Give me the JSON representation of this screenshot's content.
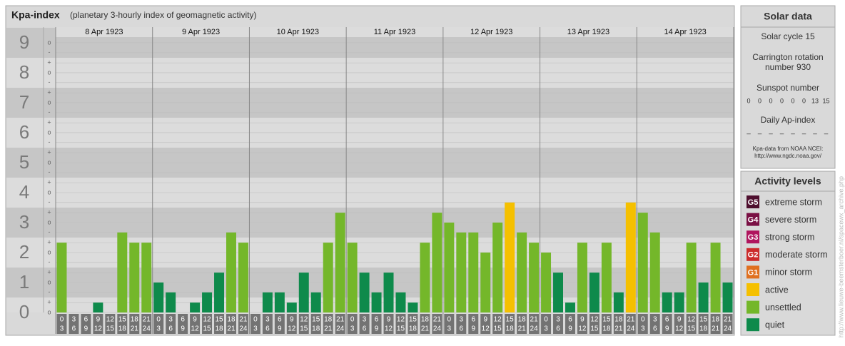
{
  "header": {
    "title": "Kpa-index",
    "subtitle": "(planetary 3-hourly index of geomagnetic activity)"
  },
  "chart_data": {
    "type": "bar",
    "days": [
      "8 Apr 1923",
      "9 Apr 1923",
      "10 Apr 1923",
      "11 Apr 1923",
      "12 Apr 1923",
      "13 Apr 1923",
      "14 Apr 1923"
    ],
    "time_bins": [
      0,
      3,
      6,
      9,
      12,
      15,
      18,
      21,
      24
    ],
    "values": [
      2.33,
      0,
      0,
      0.33,
      0,
      2.67,
      2.33,
      2.33,
      1,
      0.67,
      0,
      0.33,
      0.67,
      1.33,
      2.67,
      2.33,
      0,
      0.67,
      0.67,
      0.33,
      1.33,
      0.67,
      2.33,
      3.33,
      2.33,
      1.33,
      0.67,
      1.33,
      0.67,
      0.33,
      2.33,
      3.33,
      3,
      2.67,
      2.67,
      2,
      3,
      3.67,
      2.67,
      2.33,
      2,
      1.33,
      0.33,
      2.33,
      1.33,
      2.33,
      0.67,
      3.67,
      3.33,
      2.67,
      0.67,
      0.67,
      2.33,
      1,
      2.33,
      1
    ],
    "colors": [
      "#74b72a",
      "#0e8a4b",
      "#0e8a4b",
      "#0e8a4b",
      "#0e8a4b",
      "#74b72a",
      "#74b72a",
      "#74b72a",
      "#0e8a4b",
      "#0e8a4b",
      "#0e8a4b",
      "#0e8a4b",
      "#0e8a4b",
      "#0e8a4b",
      "#74b72a",
      "#74b72a",
      "#0e8a4b",
      "#0e8a4b",
      "#0e8a4b",
      "#0e8a4b",
      "#0e8a4b",
      "#0e8a4b",
      "#74b72a",
      "#74b72a",
      "#74b72a",
      "#0e8a4b",
      "#0e8a4b",
      "#0e8a4b",
      "#0e8a4b",
      "#0e8a4b",
      "#74b72a",
      "#74b72a",
      "#74b72a",
      "#74b72a",
      "#74b72a",
      "#74b72a",
      "#74b72a",
      "#f5c000",
      "#74b72a",
      "#74b72a",
      "#74b72a",
      "#0e8a4b",
      "#0e8a4b",
      "#74b72a",
      "#0e8a4b",
      "#74b72a",
      "#0e8a4b",
      "#f5c000",
      "#74b72a",
      "#74b72a",
      "#0e8a4b",
      "#0e8a4b",
      "#74b72a",
      "#0e8a4b",
      "#74b72a",
      "#0e8a4b"
    ],
    "ylim": [
      0,
      9.19
    ],
    "yticks": [
      0,
      1,
      2,
      3,
      4,
      5,
      6,
      7,
      8,
      9
    ],
    "minor_yticks": [
      {
        "value": 0,
        "label": "o"
      },
      {
        "value": 0.33,
        "label": "+"
      },
      {
        "value": 0.67,
        "label": "-"
      },
      {
        "value": 1,
        "label": "o"
      },
      {
        "value": 1.33,
        "label": "+"
      },
      {
        "value": 1.67,
        "label": "-"
      },
      {
        "value": 2,
        "label": "o"
      },
      {
        "value": 2.33,
        "label": "+"
      },
      {
        "value": 2.67,
        "label": "-"
      },
      {
        "value": 3,
        "label": "o"
      },
      {
        "value": 3.33,
        "label": "+"
      },
      {
        "value": 3.67,
        "label": "-"
      },
      {
        "value": 4,
        "label": "o"
      },
      {
        "value": 4.33,
        "label": "+"
      },
      {
        "value": 4.67,
        "label": "-"
      },
      {
        "value": 5,
        "label": "o"
      },
      {
        "value": 5.33,
        "label": "+"
      },
      {
        "value": 5.67,
        "label": "-"
      },
      {
        "value": 6,
        "label": "o"
      },
      {
        "value": 6.33,
        "label": "+"
      },
      {
        "value": 6.67,
        "label": "-"
      },
      {
        "value": 7,
        "label": "o"
      },
      {
        "value": 7.33,
        "label": "+"
      },
      {
        "value": 7.67,
        "label": "-"
      },
      {
        "value": 8,
        "label": "o"
      },
      {
        "value": 8.33,
        "label": "+"
      },
      {
        "value": 8.67,
        "label": "-"
      },
      {
        "value": 9,
        "label": "o"
      }
    ],
    "grid": true
  },
  "solar_data": {
    "title": "Solar data",
    "solar_cycle": "Solar cycle 15",
    "carrington": [
      "Carrington rotation",
      "number 930"
    ],
    "sunspot_label": "Sunspot number",
    "sunspot_numbers": [
      0,
      0,
      0,
      0,
      0,
      0,
      13,
      15
    ],
    "ap_label": "Daily Ap-index",
    "ap_values": [
      "–",
      "–",
      "–",
      "–",
      "–",
      "–",
      "–",
      "–"
    ],
    "source": [
      "Kpa-data from NOAA NCEI:",
      "http://www.ngdc.noaa.gov/"
    ]
  },
  "activity_levels": {
    "title": "Activity levels",
    "items": [
      {
        "badge": "G5",
        "name": "extreme storm",
        "color": "#4e0f2e"
      },
      {
        "badge": "G4",
        "name": "severe storm",
        "color": "#7a1044"
      },
      {
        "badge": "G3",
        "name": "strong storm",
        "color": "#b0155e"
      },
      {
        "badge": "G2",
        "name": "moderate storm",
        "color": "#cc2b2b"
      },
      {
        "badge": "G1",
        "name": "minor storm",
        "color": "#e07020"
      },
      {
        "badge": null,
        "name": "active",
        "color": "#f5c000"
      },
      {
        "badge": null,
        "name": "unsettled",
        "color": "#74b72a"
      },
      {
        "badge": null,
        "name": "quiet",
        "color": "#0e8a4b"
      }
    ]
  },
  "watermark": "http://www.lieuwe-beemsterboer.nl/spacewx_archive.php"
}
